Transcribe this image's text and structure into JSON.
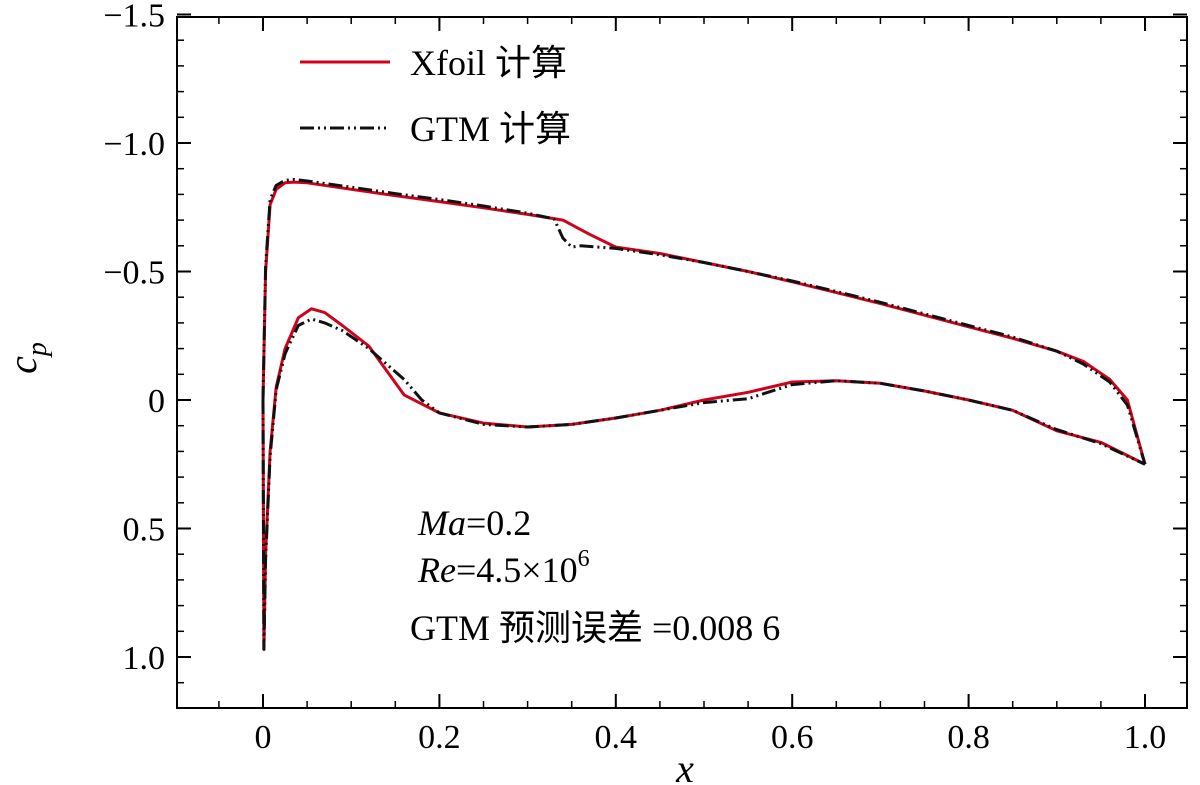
{
  "chart_data": {
    "type": "line",
    "xlabel": "x",
    "ylabel_main": "c",
    "ylabel_sub": "p",
    "xlim": [
      -0.1,
      1.02
    ],
    "ylim": [
      -1.5,
      1.1
    ],
    "y_inverted": true,
    "xticks": [
      0,
      0.2,
      0.4,
      0.6,
      0.8,
      1.0
    ],
    "xtick_labels": [
      "0",
      "0.2",
      "0.4",
      "0.6",
      "0.8",
      "1.0"
    ],
    "yticks": [
      -1.5,
      -1.0,
      -0.5,
      0,
      0.5,
      1.0
    ],
    "ytick_labels": [
      "−1.5",
      "−1.0",
      "−0.5",
      "0",
      "0.5",
      "1.0"
    ],
    "legend_position": "top-left",
    "series": [
      {
        "name": "Xfoil 计算",
        "color": "#d0021b",
        "style": "solid",
        "upper": [
          [
            0.0,
            0.0
          ],
          [
            0.003,
            -0.5
          ],
          [
            0.008,
            -0.76
          ],
          [
            0.015,
            -0.82
          ],
          [
            0.025,
            -0.845
          ],
          [
            0.035,
            -0.848
          ],
          [
            0.05,
            -0.845
          ],
          [
            0.1,
            -0.82
          ],
          [
            0.15,
            -0.795
          ],
          [
            0.2,
            -0.772
          ],
          [
            0.25,
            -0.748
          ],
          [
            0.3,
            -0.722
          ],
          [
            0.34,
            -0.7
          ],
          [
            0.37,
            -0.645
          ],
          [
            0.4,
            -0.595
          ],
          [
            0.45,
            -0.57
          ],
          [
            0.5,
            -0.535
          ],
          [
            0.55,
            -0.5
          ],
          [
            0.6,
            -0.46
          ],
          [
            0.65,
            -0.418
          ],
          [
            0.7,
            -0.375
          ],
          [
            0.75,
            -0.33
          ],
          [
            0.8,
            -0.285
          ],
          [
            0.85,
            -0.24
          ],
          [
            0.9,
            -0.19
          ],
          [
            0.93,
            -0.15
          ],
          [
            0.96,
            -0.08
          ],
          [
            0.98,
            0.0
          ],
          [
            1.0,
            0.25
          ]
        ],
        "lower": [
          [
            0.0,
            0.0
          ],
          [
            0.001,
            0.97
          ],
          [
            0.003,
            0.6
          ],
          [
            0.008,
            0.2
          ],
          [
            0.015,
            -0.05
          ],
          [
            0.025,
            -0.2
          ],
          [
            0.04,
            -0.32
          ],
          [
            0.055,
            -0.355
          ],
          [
            0.07,
            -0.34
          ],
          [
            0.09,
            -0.29
          ],
          [
            0.12,
            -0.21
          ],
          [
            0.16,
            -0.02
          ],
          [
            0.2,
            0.05
          ],
          [
            0.25,
            0.09
          ],
          [
            0.3,
            0.105
          ],
          [
            0.35,
            0.095
          ],
          [
            0.4,
            0.07
          ],
          [
            0.45,
            0.04
          ],
          [
            0.5,
            0.0
          ],
          [
            0.55,
            -0.03
          ],
          [
            0.6,
            -0.07
          ],
          [
            0.65,
            -0.075
          ],
          [
            0.7,
            -0.065
          ],
          [
            0.75,
            -0.035
          ],
          [
            0.8,
            -0.0
          ],
          [
            0.85,
            0.04
          ],
          [
            0.9,
            0.12
          ],
          [
            0.95,
            0.165
          ],
          [
            1.0,
            0.25
          ]
        ]
      },
      {
        "name": "GTM 计算",
        "color": "#111111",
        "style": "dash-dot-dot",
        "upper": [
          [
            0.0,
            0.0
          ],
          [
            0.003,
            -0.52
          ],
          [
            0.008,
            -0.78
          ],
          [
            0.015,
            -0.835
          ],
          [
            0.025,
            -0.855
          ],
          [
            0.035,
            -0.858
          ],
          [
            0.05,
            -0.852
          ],
          [
            0.1,
            -0.828
          ],
          [
            0.15,
            -0.803
          ],
          [
            0.2,
            -0.78
          ],
          [
            0.25,
            -0.755
          ],
          [
            0.3,
            -0.727
          ],
          [
            0.32,
            -0.712
          ],
          [
            0.33,
            -0.705
          ],
          [
            0.34,
            -0.63
          ],
          [
            0.35,
            -0.595
          ],
          [
            0.36,
            -0.6
          ],
          [
            0.4,
            -0.59
          ],
          [
            0.45,
            -0.565
          ],
          [
            0.5,
            -0.535
          ],
          [
            0.55,
            -0.5
          ],
          [
            0.6,
            -0.463
          ],
          [
            0.65,
            -0.422
          ],
          [
            0.7,
            -0.38
          ],
          [
            0.75,
            -0.335
          ],
          [
            0.8,
            -0.29
          ],
          [
            0.85,
            -0.245
          ],
          [
            0.9,
            -0.19
          ],
          [
            0.93,
            -0.14
          ],
          [
            0.96,
            -0.07
          ],
          [
            0.98,
            0.02
          ],
          [
            1.0,
            0.25
          ]
        ],
        "lower": [
          [
            0.0,
            0.0
          ],
          [
            0.001,
            0.97
          ],
          [
            0.003,
            0.62
          ],
          [
            0.008,
            0.22
          ],
          [
            0.015,
            -0.04
          ],
          [
            0.025,
            -0.18
          ],
          [
            0.04,
            -0.29
          ],
          [
            0.055,
            -0.315
          ],
          [
            0.07,
            -0.3
          ],
          [
            0.09,
            -0.27
          ],
          [
            0.12,
            -0.2
          ],
          [
            0.16,
            -0.08
          ],
          [
            0.18,
            -0.0
          ],
          [
            0.2,
            0.05
          ],
          [
            0.25,
            0.095
          ],
          [
            0.3,
            0.105
          ],
          [
            0.35,
            0.095
          ],
          [
            0.4,
            0.07
          ],
          [
            0.45,
            0.04
          ],
          [
            0.5,
            0.01
          ],
          [
            0.55,
            -0.005
          ],
          [
            0.6,
            -0.06
          ],
          [
            0.65,
            -0.075
          ],
          [
            0.7,
            -0.065
          ],
          [
            0.75,
            -0.035
          ],
          [
            0.8,
            0.0
          ],
          [
            0.85,
            0.04
          ],
          [
            0.9,
            0.115
          ],
          [
            0.95,
            0.17
          ],
          [
            1.0,
            0.25
          ]
        ]
      }
    ],
    "annotations": [
      {
        "italic": "Ma",
        "text": "=0.2"
      },
      {
        "italic": "Re",
        "text": "=4.5×10",
        "sup": "6"
      },
      {
        "italic": "",
        "text": "GTM 预测误差 =0.008 6"
      }
    ]
  }
}
